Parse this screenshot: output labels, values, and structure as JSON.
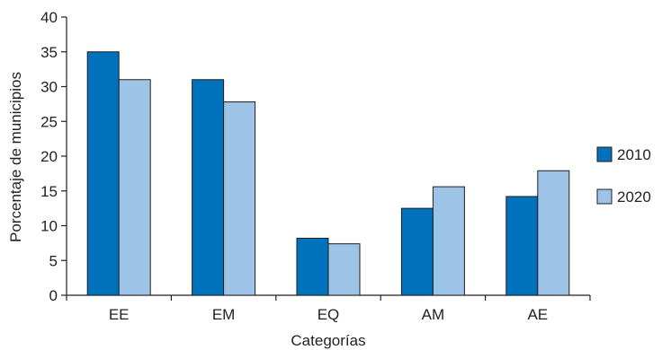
{
  "chart_data": {
    "type": "bar",
    "categories": [
      "EE",
      "EM",
      "EQ",
      "AM",
      "AE"
    ],
    "series": [
      {
        "name": "2010",
        "values": [
          35,
          31,
          8.2,
          12.5,
          14.2
        ],
        "color": "#0072bc"
      },
      {
        "name": "2020",
        "values": [
          31,
          27.8,
          7.4,
          15.6,
          17.9
        ],
        "color": "#9dc3e6"
      }
    ],
    "title": "",
    "xlabel": "Categorías",
    "ylabel": "Porcentaje de municipios",
    "ylim": [
      0,
      40
    ],
    "yticks": [
      0,
      5,
      10,
      15,
      20,
      25,
      30,
      35,
      40
    ],
    "grid": false,
    "legend_position": "right"
  }
}
